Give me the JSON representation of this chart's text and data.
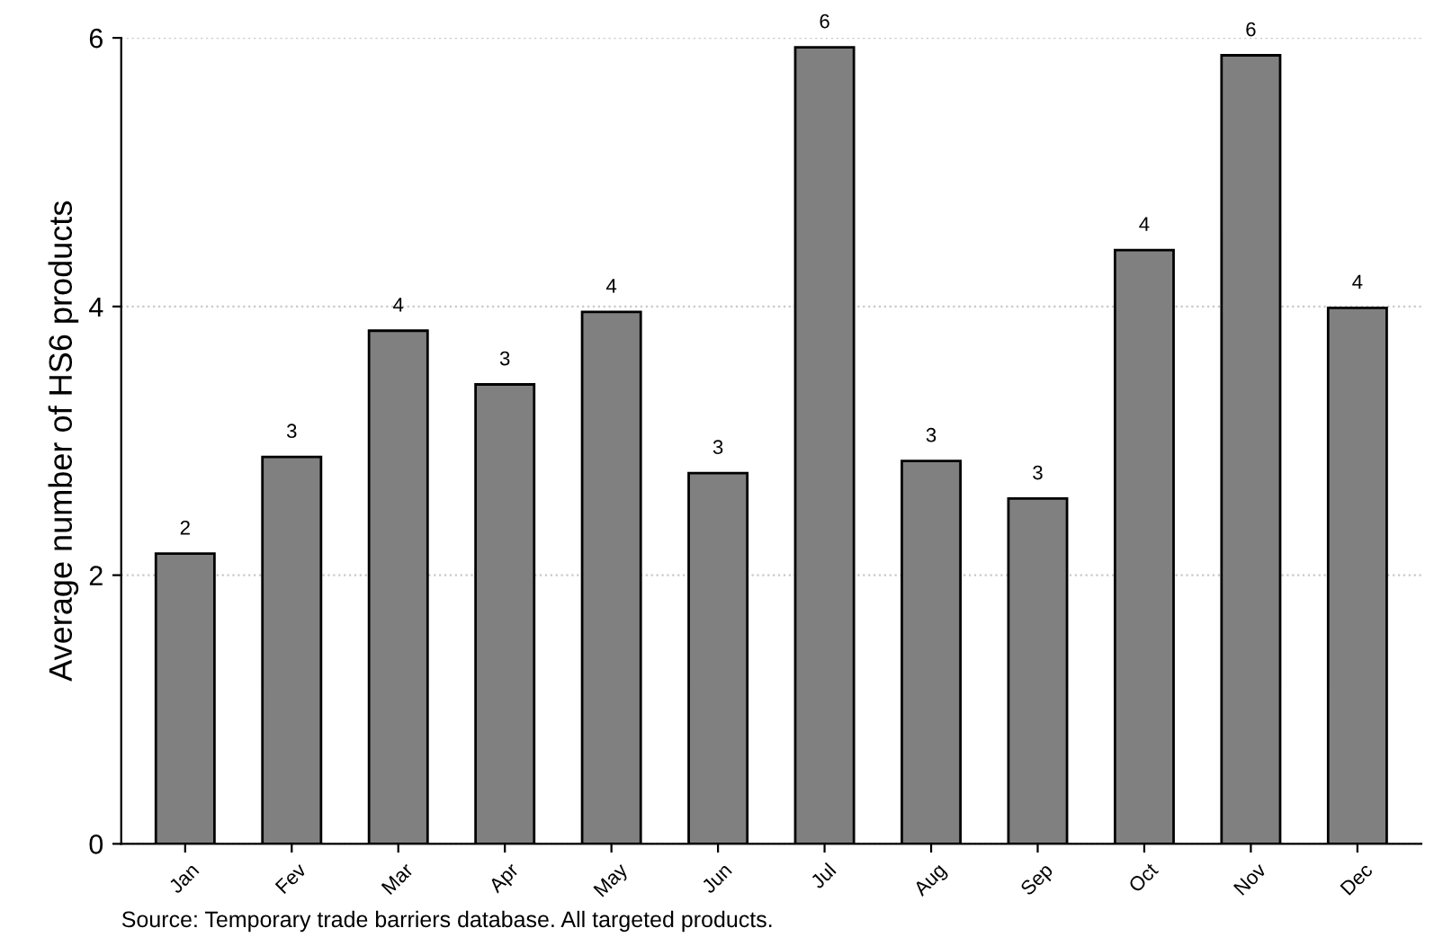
{
  "chart_data": {
    "type": "bar",
    "ylabel": "Average number of HS6 products",
    "categories": [
      "Jan",
      "Fev",
      "Mar",
      "Apr",
      "May",
      "Jun",
      "Jul",
      "Aug",
      "Sep",
      "Oct",
      "Nov",
      "Dec"
    ],
    "values": [
      2.16,
      2.88,
      3.82,
      3.42,
      3.96,
      2.76,
      5.93,
      2.85,
      2.57,
      4.42,
      5.87,
      3.99
    ],
    "value_labels": [
      "2",
      "3",
      "4",
      "3",
      "4",
      "3",
      "6",
      "3",
      "3",
      "4",
      "6",
      "4"
    ],
    "color": "#808080",
    "ylim": [
      0,
      6
    ],
    "yticks": [
      0,
      2,
      4,
      6
    ],
    "grid": "y",
    "annotations": [
      "Source: Temporary trade barriers database. All targeted products."
    ]
  }
}
